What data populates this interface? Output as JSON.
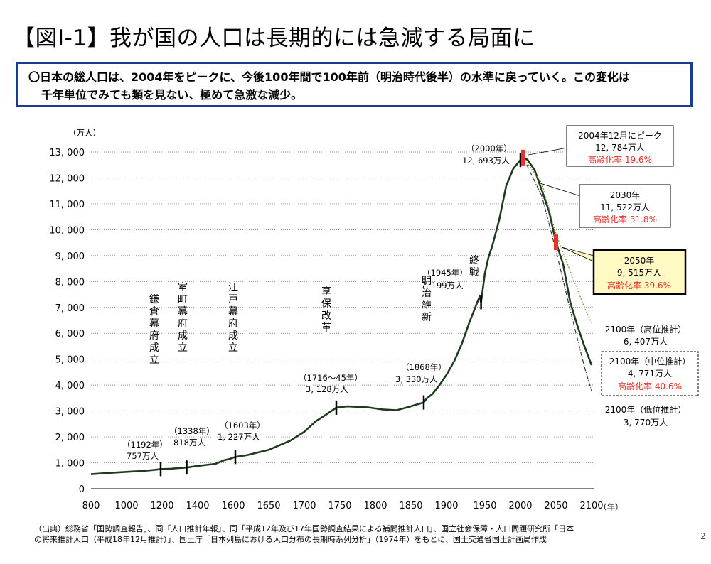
{
  "title": "【図Ⅰ-1】我が国の人口は長期的には急減する局面に",
  "summary": {
    "line1": "〇日本の総人口は、2004年をピークに、今後100年間で100年前（明治時代後半）の水準に戻っていく。この変化は",
    "line2": "千年単位でみても類を見ない、極めて急激な減少。"
  },
  "chart_data": {
    "type": "line",
    "ylabel": "（万人）",
    "xlabel": "（年）",
    "ylim": [
      0,
      13000
    ],
    "xlim": [
      800,
      2100
    ],
    "y_ticks": [
      0,
      1000,
      2000,
      3000,
      4000,
      5000,
      6000,
      7000,
      8000,
      9000,
      10000,
      11000,
      12000,
      13000
    ],
    "y_tick_labels": [
      "0",
      "1, 000",
      "2, 000",
      "3, 000",
      "4, 000",
      "5, 000",
      "6, 000",
      "7, 000",
      "8, 000",
      "9, 000",
      "10, 000",
      "11, 000",
      "12, 000",
      "13, 000"
    ],
    "x_ticks": [
      800,
      1000,
      1200,
      1400,
      1600,
      1650,
      1700,
      1750,
      1800,
      1850,
      1900,
      1950,
      2000,
      2050,
      2100
    ],
    "grid": "horizontal-dotted",
    "series": [
      {
        "name": "",
        "style": "solid",
        "color": "#1e3b1e",
        "x": [
          800,
          900,
          1000,
          1100,
          1150,
          1192,
          1250,
          1280,
          1338,
          1400,
          1450,
          1500,
          1550,
          1580,
          1603,
          1620,
          1650,
          1680,
          1700,
          1716,
          1730,
          1745,
          1760,
          1790,
          1800,
          1810,
          1830,
          1846,
          1868,
          1872,
          1880,
          1890,
          1900,
          1910,
          1920,
          1930,
          1940,
          1943,
          1945,
          1950,
          1955,
          1960,
          1970,
          1980,
          1990,
          2000,
          2004,
          2010,
          2020,
          2030,
          2040,
          2050,
          2060,
          2070,
          2080,
          2090,
          2100
        ],
        "y": [
          560,
          610,
          650,
          690,
          720,
          757,
          770,
          790,
          818,
          880,
          920,
          960,
          1100,
          1150,
          1227,
          1300,
          1500,
          1850,
          2200,
          2600,
          2850,
          3128,
          3180,
          3140,
          3100,
          3060,
          3030,
          3150,
          3330,
          3480,
          3650,
          4000,
          4400,
          4920,
          5600,
          6440,
          7190,
          7400,
          7199,
          8320,
          8930,
          9340,
          10370,
          11700,
          12360,
          12693,
          12784,
          12700,
          12300,
          11522,
          10730,
          9515,
          8670,
          7200,
          6300,
          5500,
          4771
        ]
      },
      {
        "name": "2100年（高位推計）",
        "style": "dotted",
        "color": "#7a8a2a",
        "x": [
          2004,
          2030,
          2050,
          2070,
          2090,
          2100
        ],
        "y": [
          12784,
          11800,
          9850,
          8400,
          7000,
          6407
        ]
      },
      {
        "name": "2100年（低位推計）",
        "style": "dashdot",
        "color": "#333333",
        "x": [
          2004,
          2030,
          2050,
          2070,
          2090,
          2100
        ],
        "y": [
          12784,
          11300,
          9200,
          6900,
          4700,
          3770
        ]
      }
    ],
    "markers": [
      {
        "x": 1192,
        "y": 757,
        "color": "#000"
      },
      {
        "x": 1338,
        "y": 818,
        "color": "#000"
      },
      {
        "x": 1603,
        "y": 1227,
        "color": "#000"
      },
      {
        "x": 1745,
        "y": 3128,
        "color": "#000"
      },
      {
        "x": 1868,
        "y": 3330,
        "color": "#000"
      },
      {
        "x": 1945,
        "y": 7199,
        "color": "#000"
      },
      {
        "x": 2000,
        "y": 12693,
        "color": "#000"
      },
      {
        "x": 2004,
        "y": 12784,
        "color": "#e8332a"
      },
      {
        "x": 2050,
        "y": 9515,
        "color": "#e8332a"
      }
    ],
    "annotations": {
      "kamakura_label": "鎌倉幕府成立",
      "kamakura_year": "（1192年）",
      "kamakura_value": "757万人",
      "muromachi_label": "室町幕府成立",
      "muromachi_year": "（1338年）",
      "muromachi_value": "818万人",
      "edo_label": "江戸幕府成立",
      "edo_year": "（1603年）",
      "edo_value": "1, 227万人",
      "kyoho_label": "享保改革",
      "kyoho_year": "（1716～45年）",
      "kyoho_value": "3, 128万人",
      "meiji_label": "明治維新",
      "meiji_year": "（1868年）",
      "meiji_value": "3, 330万人",
      "war_label": "終戦",
      "war_year": "（1945年）",
      "war_value": "7, 199万人",
      "y2000_year": "（2000年）",
      "y2000_value": "12, 693万人"
    },
    "callouts": {
      "peak": {
        "line1": "2004年12月にピーク",
        "line2": "12, 784万人",
        "line3": "高齢化率 19.6%"
      },
      "y2030": {
        "line1": "2030年",
        "line2": "11, 522万人",
        "line3": "高齢化率 31.8%"
      },
      "y2050": {
        "line1": "2050年",
        "line2": "9, 515万人",
        "line3": "高齢化率 39.6%"
      },
      "high": {
        "line1": "2100年（高位推計）",
        "line2": "6, 407万人"
      },
      "mid": {
        "line1": "2100年（中位推計）",
        "line2": "4, 771万人",
        "line3": "高齢化率 40.6%"
      },
      "low": {
        "line1": "2100年（低位推計）",
        "line2": "3, 770万人"
      }
    }
  },
  "source": {
    "line1": "（出典）総務省「国勢調査報告」、同「人口推計年報」、同「平成12年及び17年国勢調査結果による補間推計人口」、国立社会保障・人口問題研究所「日本",
    "line2": "の将来推計人口（平成18年12月推計）」、国土庁「日本列島における人口分布の長期時系列分析」（1974年）をもとに、国土交通省国土計画局作成"
  },
  "page_number": "2",
  "colors": {
    "frame": "#1f3a93",
    "accent_red": "#e8332a",
    "highlight_box": "#fff9c4",
    "highlight_border": "#000000"
  }
}
